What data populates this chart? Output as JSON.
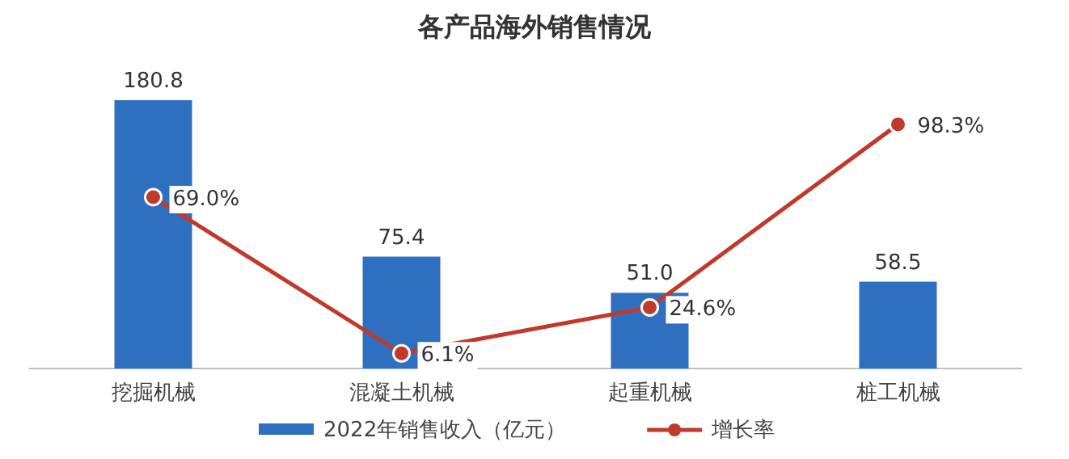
{
  "chart_data": {
    "type": "bar",
    "title": "各产品海外销售情况",
    "categories": [
      "挖掘机械",
      "混凝土机械",
      "起重机械",
      "桩工机械"
    ],
    "series": [
      {
        "name": "2022年销售收入（亿元）",
        "color": "#2f6fbf",
        "values": [
          180.8,
          75.4,
          51.0,
          58.5
        ],
        "value_labels": [
          "180.8",
          "75.4",
          "51.0",
          "58.5"
        ]
      },
      {
        "name": "增长率",
        "type": "line",
        "axis": "y2",
        "color": "#c0392b",
        "marker": "circle",
        "values": [
          69.0,
          6.1,
          24.6,
          98.3
        ],
        "value_labels": [
          "69.0%",
          "6.1%",
          "24.6%",
          "98.3%"
        ]
      }
    ],
    "legend": "bottom"
  }
}
